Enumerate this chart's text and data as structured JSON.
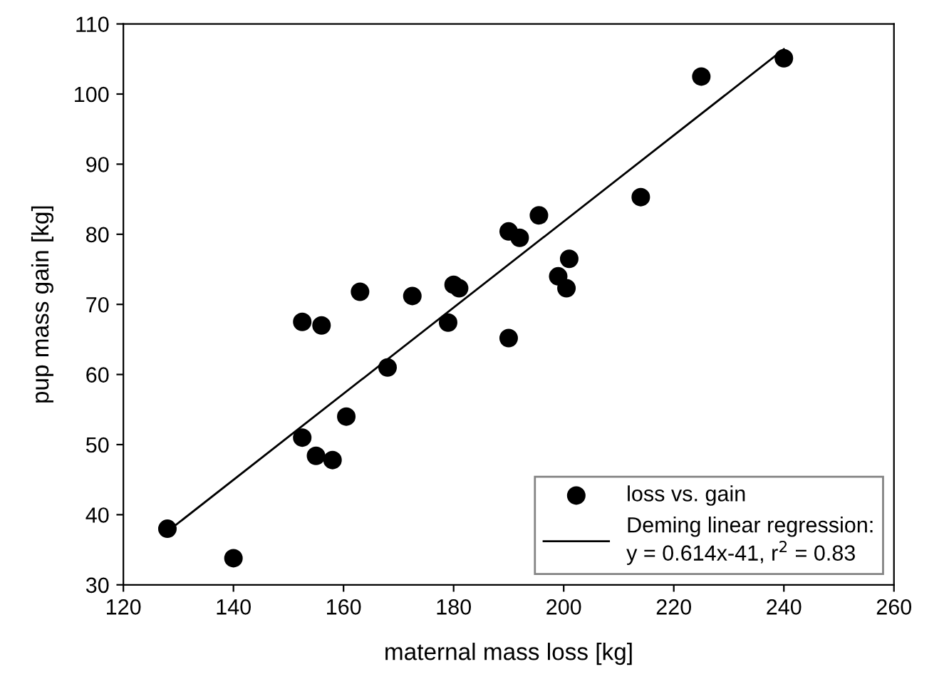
{
  "chart_data": {
    "type": "scatter",
    "xlabel": "maternal mass loss [kg]",
    "ylabel": "pup mass gain [kg]",
    "xlim": [
      120,
      260
    ],
    "xticks": [
      120,
      140,
      160,
      180,
      200,
      220,
      240,
      260
    ],
    "ylim": [
      30,
      110
    ],
    "yticks": [
      30,
      40,
      50,
      60,
      70,
      80,
      90,
      100,
      110
    ],
    "grid": false,
    "legend": "bottom right",
    "series": [
      {
        "name": "loss vs. gain",
        "marker": "circle",
        "color": "#000000",
        "x": [
          128,
          140,
          152.5,
          152.5,
          155,
          156,
          158,
          160.5,
          163,
          168,
          172.5,
          179,
          180,
          181,
          190,
          190,
          192,
          195.5,
          199,
          200.5,
          201,
          214,
          225,
          240
        ],
        "values": [
          38,
          33.8,
          67.5,
          51,
          48.4,
          67,
          47.8,
          54,
          71.8,
          61,
          71.2,
          67.4,
          72.8,
          72.3,
          80.4,
          65.2,
          79.5,
          82.7,
          74,
          72.3,
          76.5,
          85.3,
          102.5,
          105.1
        ]
      },
      {
        "name": "Deming linear regression:\ny = 0.614x-41, r$^{2}$ = 0.83",
        "type": "line",
        "marker": "none",
        "color": "#000000",
        "line_style": "solid",
        "x": [
          128,
          240
        ],
        "values": [
          37.6,
          106.4
        ]
      }
    ]
  }
}
